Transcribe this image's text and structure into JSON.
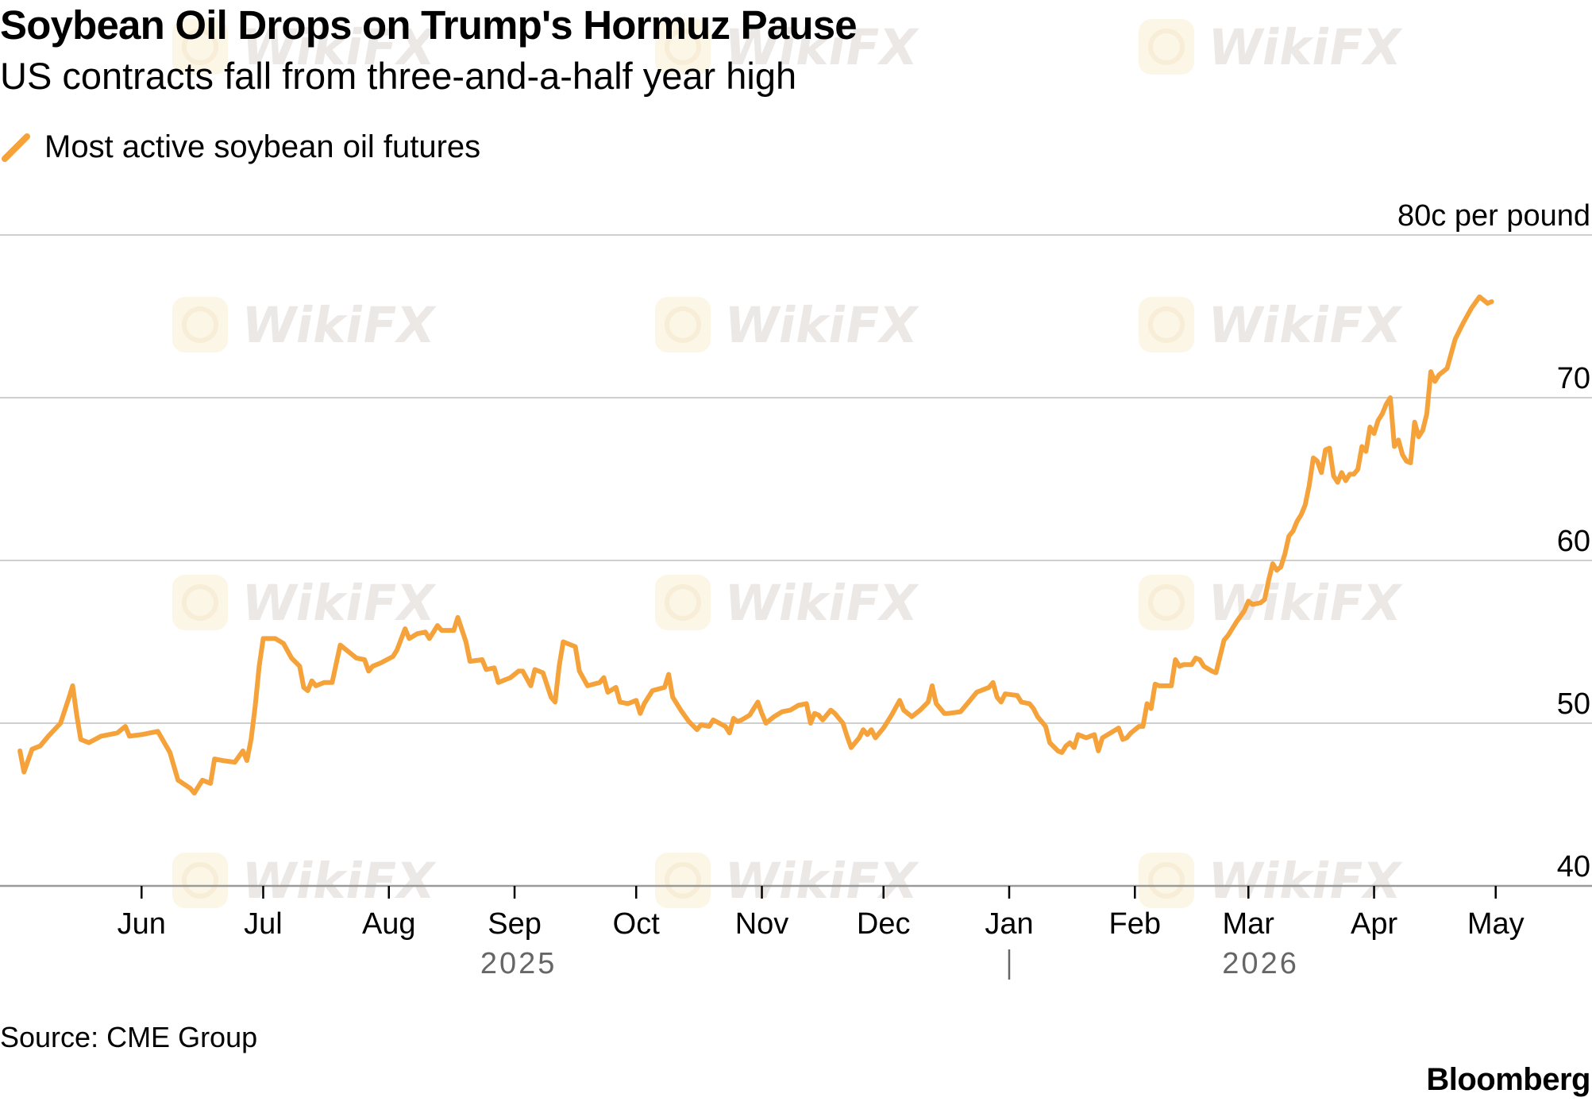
{
  "header": {
    "title": "Soybean Oil Drops on Trump's Hormuz Pause",
    "subtitle": "US contracts fall from three-and-a-half year high"
  },
  "legend": {
    "label": "Most active soybean oil futures",
    "icon": "diagonal-line-swatch-icon"
  },
  "footer": {
    "source": "Source: CME Group",
    "brand": "Bloomberg"
  },
  "watermark": {
    "text": "WikiFX",
    "icon": "wikifx-logo-icon",
    "color": "#d9d2cf",
    "logo_color": "#fbeed0"
  },
  "colors": {
    "series": "#f5a23a",
    "grid": "#cfcfcf",
    "axis": "#9a9a9a",
    "text": "#000000",
    "year_text": "#666666"
  },
  "chart_data": {
    "type": "line",
    "title": "Soybean Oil Drops on Trump's Hormuz Pause",
    "subtitle": "US contracts fall from three-and-a-half year high",
    "ylabel": "80c per pound",
    "y_unit": "c per pound",
    "ylim": [
      40,
      80
    ],
    "yticks": [
      40,
      50,
      60,
      70,
      80
    ],
    "ytick_labels": [
      "40",
      "50",
      "60",
      "70",
      "80c per pound"
    ],
    "xlim": [
      "2025-05-01",
      "2026-05-13"
    ],
    "xticks": [
      {
        "date": "2025-06-01",
        "label": "Jun"
      },
      {
        "date": "2025-07-01",
        "label": "Jul"
      },
      {
        "date": "2025-08-01",
        "label": "Aug"
      },
      {
        "date": "2025-09-01",
        "label": "Sep"
      },
      {
        "date": "2025-10-01",
        "label": "Oct"
      },
      {
        "date": "2025-11-01",
        "label": "Nov"
      },
      {
        "date": "2025-12-01",
        "label": "Dec"
      },
      {
        "date": "2026-01-01",
        "label": "Jan"
      },
      {
        "date": "2026-02-01",
        "label": "Feb"
      },
      {
        "date": "2026-03-01",
        "label": "Mar"
      },
      {
        "date": "2026-04-01",
        "label": "Apr"
      },
      {
        "date": "2026-05-01",
        "label": "May"
      }
    ],
    "year_labels": [
      {
        "label": "2025",
        "date": "2025-09-02"
      },
      {
        "label": "2026",
        "date": "2026-03-04"
      }
    ],
    "year_divider": "2026-01-01",
    "grid": true,
    "legend_position": "top-left",
    "series": [
      {
        "name": "Most active soybean oil futures",
        "color": "#f5a23a",
        "points": [
          [
            "2025-05-02",
            48.3
          ],
          [
            "2025-05-03",
            47.0
          ],
          [
            "2025-05-05",
            48.4
          ],
          [
            "2025-05-07",
            48.6
          ],
          [
            "2025-05-09",
            49.2
          ],
          [
            "2025-05-12",
            50.0
          ],
          [
            "2025-05-14",
            51.5
          ],
          [
            "2025-05-15",
            52.3
          ],
          [
            "2025-05-16",
            50.5
          ],
          [
            "2025-05-17",
            49.0
          ],
          [
            "2025-05-19",
            48.8
          ],
          [
            "2025-05-22",
            49.2
          ],
          [
            "2025-05-26",
            49.4
          ],
          [
            "2025-05-28",
            49.8
          ],
          [
            "2025-05-29",
            49.2
          ],
          [
            "2025-06-01",
            49.3
          ],
          [
            "2025-06-05",
            49.5
          ],
          [
            "2025-06-08",
            48.2
          ],
          [
            "2025-06-10",
            46.5
          ],
          [
            "2025-06-13",
            46.0
          ],
          [
            "2025-06-14",
            45.7
          ],
          [
            "2025-06-16",
            46.5
          ],
          [
            "2025-06-18",
            46.3
          ],
          [
            "2025-06-19",
            47.8
          ],
          [
            "2025-06-21",
            47.7
          ],
          [
            "2025-06-24",
            47.6
          ],
          [
            "2025-06-26",
            48.3
          ],
          [
            "2025-06-27",
            47.7
          ],
          [
            "2025-06-28",
            49.0
          ],
          [
            "2025-06-29",
            51.0
          ],
          [
            "2025-06-30",
            53.5
          ],
          [
            "2025-07-01",
            55.2
          ],
          [
            "2025-07-04",
            55.2
          ],
          [
            "2025-07-06",
            54.9
          ],
          [
            "2025-07-08",
            54.0
          ],
          [
            "2025-07-10",
            53.5
          ],
          [
            "2025-07-11",
            52.2
          ],
          [
            "2025-07-12",
            52.0
          ],
          [
            "2025-07-13",
            52.6
          ],
          [
            "2025-07-14",
            52.3
          ],
          [
            "2025-07-16",
            52.5
          ],
          [
            "2025-07-18",
            52.5
          ],
          [
            "2025-07-20",
            54.8
          ],
          [
            "2025-07-22",
            54.4
          ],
          [
            "2025-07-24",
            54.0
          ],
          [
            "2025-07-26",
            53.9
          ],
          [
            "2025-07-27",
            53.2
          ],
          [
            "2025-07-28",
            53.5
          ],
          [
            "2025-07-30",
            53.7
          ],
          [
            "2025-08-02",
            54.1
          ],
          [
            "2025-08-03",
            54.5
          ],
          [
            "2025-08-05",
            55.8
          ],
          [
            "2025-08-06",
            55.2
          ],
          [
            "2025-08-08",
            55.5
          ],
          [
            "2025-08-10",
            55.6
          ],
          [
            "2025-08-11",
            55.2
          ],
          [
            "2025-08-13",
            56.0
          ],
          [
            "2025-08-14",
            55.7
          ],
          [
            "2025-08-17",
            55.7
          ],
          [
            "2025-08-18",
            56.5
          ],
          [
            "2025-08-20",
            55.0
          ],
          [
            "2025-08-21",
            53.8
          ],
          [
            "2025-08-24",
            53.9
          ],
          [
            "2025-08-25",
            53.3
          ],
          [
            "2025-08-27",
            53.4
          ],
          [
            "2025-08-28",
            52.5
          ],
          [
            "2025-08-31",
            52.8
          ],
          [
            "2025-09-02",
            53.2
          ],
          [
            "2025-09-03",
            53.2
          ],
          [
            "2025-09-05",
            52.3
          ],
          [
            "2025-09-06",
            53.3
          ],
          [
            "2025-09-08",
            53.1
          ],
          [
            "2025-09-10",
            51.6
          ],
          [
            "2025-09-11",
            51.3
          ],
          [
            "2025-09-12",
            53.5
          ],
          [
            "2025-09-13",
            55.0
          ],
          [
            "2025-09-16",
            54.7
          ],
          [
            "2025-09-17",
            53.2
          ],
          [
            "2025-09-19",
            52.3
          ],
          [
            "2025-09-22",
            52.5
          ],
          [
            "2025-09-23",
            52.8
          ],
          [
            "2025-09-24",
            51.9
          ],
          [
            "2025-09-26",
            52.2
          ],
          [
            "2025-09-27",
            51.3
          ],
          [
            "2025-09-29",
            51.2
          ],
          [
            "2025-10-01",
            51.4
          ],
          [
            "2025-10-02",
            50.6
          ],
          [
            "2025-10-03",
            51.2
          ],
          [
            "2025-10-05",
            52.0
          ],
          [
            "2025-10-08",
            52.2
          ],
          [
            "2025-10-09",
            53.0
          ],
          [
            "2025-10-10",
            51.6
          ],
          [
            "2025-10-12",
            50.8
          ],
          [
            "2025-10-14",
            50.1
          ],
          [
            "2025-10-16",
            49.6
          ],
          [
            "2025-10-17",
            49.9
          ],
          [
            "2025-10-19",
            49.8
          ],
          [
            "2025-10-20",
            50.2
          ],
          [
            "2025-10-23",
            49.8
          ],
          [
            "2025-10-24",
            49.4
          ],
          [
            "2025-10-25",
            50.3
          ],
          [
            "2025-10-26",
            50.1
          ],
          [
            "2025-10-27",
            50.2
          ],
          [
            "2025-10-29",
            50.5
          ],
          [
            "2025-10-31",
            51.3
          ],
          [
            "2025-11-01",
            50.6
          ],
          [
            "2025-11-02",
            50.0
          ],
          [
            "2025-11-04",
            50.4
          ],
          [
            "2025-11-06",
            50.7
          ],
          [
            "2025-11-08",
            50.8
          ],
          [
            "2025-11-10",
            51.1
          ],
          [
            "2025-11-12",
            51.2
          ],
          [
            "2025-11-13",
            50.0
          ],
          [
            "2025-11-14",
            50.6
          ],
          [
            "2025-11-15",
            50.5
          ],
          [
            "2025-11-16",
            50.2
          ],
          [
            "2025-11-18",
            50.8
          ],
          [
            "2025-11-19",
            50.6
          ],
          [
            "2025-11-21",
            50.0
          ],
          [
            "2025-11-22",
            49.2
          ],
          [
            "2025-11-23",
            48.5
          ],
          [
            "2025-11-25",
            49.1
          ],
          [
            "2025-11-26",
            49.6
          ],
          [
            "2025-11-27",
            49.3
          ],
          [
            "2025-11-28",
            49.6
          ],
          [
            "2025-11-29",
            49.1
          ],
          [
            "2025-12-01",
            49.7
          ],
          [
            "2025-12-03",
            50.5
          ],
          [
            "2025-12-05",
            51.4
          ],
          [
            "2025-12-06",
            50.8
          ],
          [
            "2025-12-08",
            50.4
          ],
          [
            "2025-12-10",
            50.8
          ],
          [
            "2025-12-12",
            51.3
          ],
          [
            "2025-12-13",
            52.3
          ],
          [
            "2025-12-14",
            51.2
          ],
          [
            "2025-12-16",
            50.6
          ],
          [
            "2025-12-17",
            50.6
          ],
          [
            "2025-12-20",
            50.7
          ],
          [
            "2025-12-22",
            51.3
          ],
          [
            "2025-12-24",
            51.9
          ],
          [
            "2025-12-27",
            52.2
          ],
          [
            "2025-12-28",
            52.5
          ],
          [
            "2025-12-29",
            51.6
          ],
          [
            "2025-12-30",
            51.3
          ],
          [
            "2025-12-31",
            51.8
          ],
          [
            "2026-01-03",
            51.7
          ],
          [
            "2026-01-04",
            51.3
          ],
          [
            "2026-01-06",
            51.2
          ],
          [
            "2026-01-07",
            50.9
          ],
          [
            "2026-01-08",
            50.4
          ],
          [
            "2026-01-09",
            50.1
          ],
          [
            "2026-01-10",
            49.8
          ],
          [
            "2026-01-11",
            48.8
          ],
          [
            "2026-01-13",
            48.3
          ],
          [
            "2026-01-14",
            48.2
          ],
          [
            "2026-01-15",
            48.6
          ],
          [
            "2026-01-16",
            48.8
          ],
          [
            "2026-01-17",
            48.5
          ],
          [
            "2026-01-18",
            49.3
          ],
          [
            "2026-01-19",
            49.2
          ],
          [
            "2026-01-20",
            49.1
          ],
          [
            "2026-01-22",
            49.3
          ],
          [
            "2026-01-23",
            48.3
          ],
          [
            "2026-01-24",
            49.1
          ],
          [
            "2026-01-26",
            49.4
          ],
          [
            "2026-01-28",
            49.7
          ],
          [
            "2026-01-29",
            49.0
          ],
          [
            "2026-01-30",
            49.1
          ],
          [
            "2026-01-31",
            49.4
          ],
          [
            "2026-02-02",
            49.8
          ],
          [
            "2026-02-03",
            49.8
          ],
          [
            "2026-02-04",
            51.2
          ],
          [
            "2026-02-05",
            50.9
          ],
          [
            "2026-02-06",
            52.4
          ],
          [
            "2026-02-07",
            52.3
          ],
          [
            "2026-02-10",
            52.3
          ],
          [
            "2026-02-11",
            53.9
          ],
          [
            "2026-02-12",
            53.5
          ],
          [
            "2026-02-13",
            53.6
          ],
          [
            "2026-02-15",
            53.6
          ],
          [
            "2026-02-16",
            54.0
          ],
          [
            "2026-02-17",
            53.9
          ],
          [
            "2026-02-18",
            53.5
          ],
          [
            "2026-02-20",
            53.2
          ],
          [
            "2026-02-21",
            53.1
          ],
          [
            "2026-02-23",
            55.1
          ],
          [
            "2026-02-24",
            55.4
          ],
          [
            "2026-02-26",
            56.2
          ],
          [
            "2026-02-28",
            56.9
          ],
          [
            "2026-03-01",
            57.5
          ],
          [
            "2026-03-02",
            57.3
          ],
          [
            "2026-03-04",
            57.4
          ],
          [
            "2026-03-05",
            57.6
          ],
          [
            "2026-03-06",
            58.8
          ],
          [
            "2026-03-07",
            59.8
          ],
          [
            "2026-03-08",
            59.4
          ],
          [
            "2026-03-09",
            59.6
          ],
          [
            "2026-03-10",
            60.4
          ],
          [
            "2026-03-11",
            61.5
          ],
          [
            "2026-03-12",
            61.8
          ],
          [
            "2026-03-13",
            62.4
          ],
          [
            "2026-03-14",
            62.8
          ],
          [
            "2026-03-15",
            63.4
          ],
          [
            "2026-03-16",
            64.6
          ],
          [
            "2026-03-17",
            66.3
          ],
          [
            "2026-03-18",
            66.1
          ],
          [
            "2026-03-19",
            65.4
          ],
          [
            "2026-03-20",
            66.8
          ],
          [
            "2026-03-21",
            66.9
          ],
          [
            "2026-03-22",
            65.2
          ],
          [
            "2026-03-23",
            64.8
          ],
          [
            "2026-03-24",
            65.4
          ],
          [
            "2026-03-25",
            64.9
          ],
          [
            "2026-03-26",
            65.3
          ],
          [
            "2026-03-27",
            65.3
          ],
          [
            "2026-03-28",
            65.6
          ],
          [
            "2026-03-29",
            67.0
          ],
          [
            "2026-03-30",
            66.7
          ],
          [
            "2026-03-31",
            68.2
          ],
          [
            "2026-04-01",
            67.8
          ],
          [
            "2026-04-02",
            68.6
          ],
          [
            "2026-04-03",
            69.0
          ],
          [
            "2026-04-04",
            69.6
          ],
          [
            "2026-04-05",
            70.0
          ],
          [
            "2026-04-06",
            67.0
          ],
          [
            "2026-04-07",
            67.4
          ],
          [
            "2026-04-08",
            66.5
          ],
          [
            "2026-04-09",
            66.1
          ],
          [
            "2026-04-10",
            66.0
          ],
          [
            "2026-04-11",
            68.5
          ],
          [
            "2026-04-12",
            67.6
          ],
          [
            "2026-04-13",
            68.0
          ],
          [
            "2026-04-14",
            69.0
          ],
          [
            "2026-04-15",
            71.6
          ],
          [
            "2026-04-16",
            71.0
          ],
          [
            "2026-04-17",
            71.4
          ],
          [
            "2026-04-18",
            71.6
          ],
          [
            "2026-04-19",
            71.8
          ],
          [
            "2026-04-21",
            73.6
          ],
          [
            "2026-04-23",
            74.6
          ],
          [
            "2026-04-25",
            75.5
          ],
          [
            "2026-04-27",
            76.2
          ],
          [
            "2026-04-29",
            75.8
          ],
          [
            "2026-04-30",
            75.9
          ]
        ]
      }
    ]
  }
}
